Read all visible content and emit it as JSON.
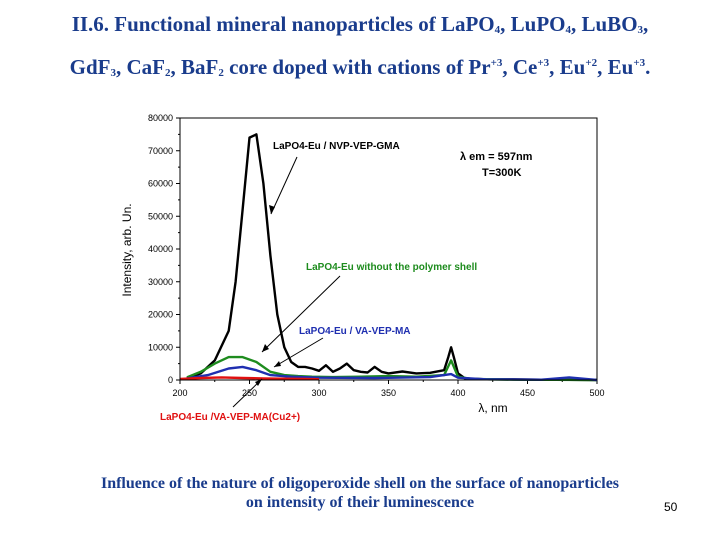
{
  "slide": {
    "title_line1": "II.6. Functional mineral nanoparticles of LaPO4, LuPO4, LuBO3,",
    "title_line2": "GdF3, CaF2, BaF2 core doped with cations of Pr+3, Ce+3, Eu+2, Eu+3.",
    "caption_line1": "Influence of the nature of oligoperoxide shell on the surface of nanoparticles",
    "caption_line2": "on intensity of their luminescence",
    "page_number": "50"
  },
  "chart_data": {
    "type": "line",
    "title": "",
    "xlabel": "λ, nm",
    "ylabel": "Intensity, arb. Un.",
    "xlim": [
      200,
      500
    ],
    "ylim": [
      0,
      80000
    ],
    "xticks": [
      200,
      250,
      300,
      350,
      400,
      450,
      500
    ],
    "yticks": [
      0,
      10000,
      20000,
      30000,
      40000,
      50000,
      60000,
      70000,
      80000
    ],
    "grid": false,
    "annotations": [
      "λ em = 597nm",
      "T=300K"
    ],
    "series": [
      {
        "name": "LaPO4-Eu / NVP-VEP-GMA",
        "color": "#000000",
        "x": [
          205,
          215,
          225,
          235,
          240,
          245,
          250,
          255,
          260,
          265,
          270,
          275,
          280,
          285,
          290,
          295,
          300,
          305,
          310,
          315,
          320,
          325,
          330,
          335,
          340,
          345,
          350,
          360,
          370,
          380,
          390,
          393,
          395,
          397,
          400,
          405,
          420,
          440,
          460,
          480,
          500
        ],
        "y": [
          500,
          2000,
          6000,
          15000,
          30000,
          52000,
          74000,
          75000,
          60000,
          38000,
          20000,
          10000,
          5500,
          4000,
          4000,
          3500,
          2800,
          4500,
          2500,
          3500,
          5000,
          3000,
          2500,
          2300,
          4000,
          2500,
          2000,
          2600,
          2000,
          2200,
          3000,
          7000,
          10000,
          7000,
          2000,
          500,
          200,
          200,
          100,
          50,
          0
        ]
      },
      {
        "name": "LaPO4-Eu without the polymer shell",
        "color": "#1e8c1e",
        "x": [
          205,
          215,
          225,
          235,
          245,
          255,
          265,
          275,
          285,
          295,
          310,
          330,
          350,
          370,
          390,
          395,
          400,
          410,
          440,
          470,
          500
        ],
        "y": [
          800,
          2500,
          5000,
          7000,
          7000,
          5500,
          2500,
          1500,
          1200,
          1000,
          900,
          1000,
          1200,
          1000,
          1500,
          6000,
          1000,
          300,
          100,
          50,
          0
        ]
      },
      {
        "name": "LaPO4-Eu / VA-VEP-MA",
        "color": "#1f2fb0",
        "x": [
          205,
          220,
          235,
          245,
          255,
          265,
          280,
          300,
          340,
          380,
          395,
          400,
          420,
          460,
          480,
          500
        ],
        "y": [
          500,
          1500,
          3500,
          4000,
          3000,
          1500,
          1000,
          700,
          600,
          900,
          1800,
          700,
          200,
          100,
          800,
          0
        ]
      },
      {
        "name": "LaPO4-Eu /VA-VEP-MA(Cu2+)",
        "color": "#e01010",
        "x": [
          200,
          215,
          230,
          245,
          260,
          275,
          290,
          300
        ],
        "y": [
          300,
          600,
          800,
          600,
          500,
          400,
          300,
          200
        ]
      }
    ]
  }
}
